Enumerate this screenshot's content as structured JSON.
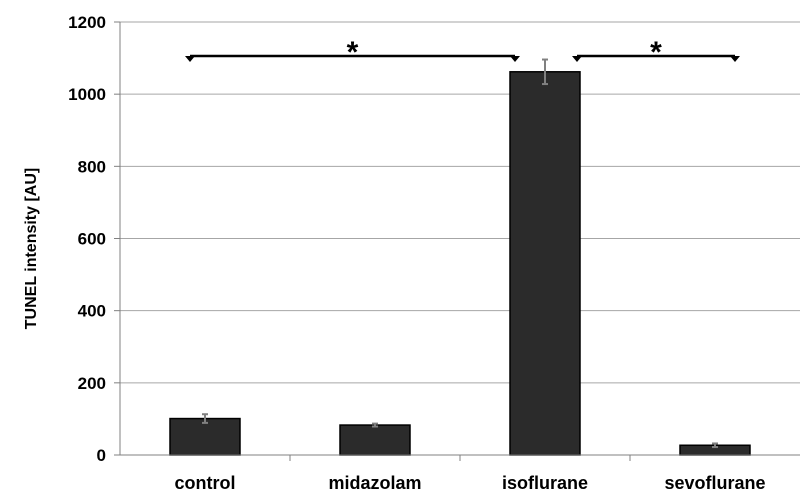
{
  "chart_data": {
    "type": "bar",
    "categories": [
      "control",
      "midazolam",
      "isoflurane",
      "sevoflurane"
    ],
    "values": [
      101,
      83,
      1062,
      27
    ],
    "errors": [
      12,
      4,
      34,
      5
    ],
    "ylabel": "TUNEL intensity [AU]",
    "xlabel": "",
    "ylim": [
      0,
      1200
    ],
    "yticks": [
      0,
      200,
      400,
      600,
      800,
      1000,
      1200
    ],
    "grid": true,
    "bar_color": "#2b2b2b",
    "error_bar_color": "#808080",
    "significance": [
      {
        "from": "control",
        "to": "isoflurane",
        "marker": "*"
      },
      {
        "from": "isoflurane",
        "to": "sevoflurane",
        "marker": "*"
      }
    ]
  }
}
